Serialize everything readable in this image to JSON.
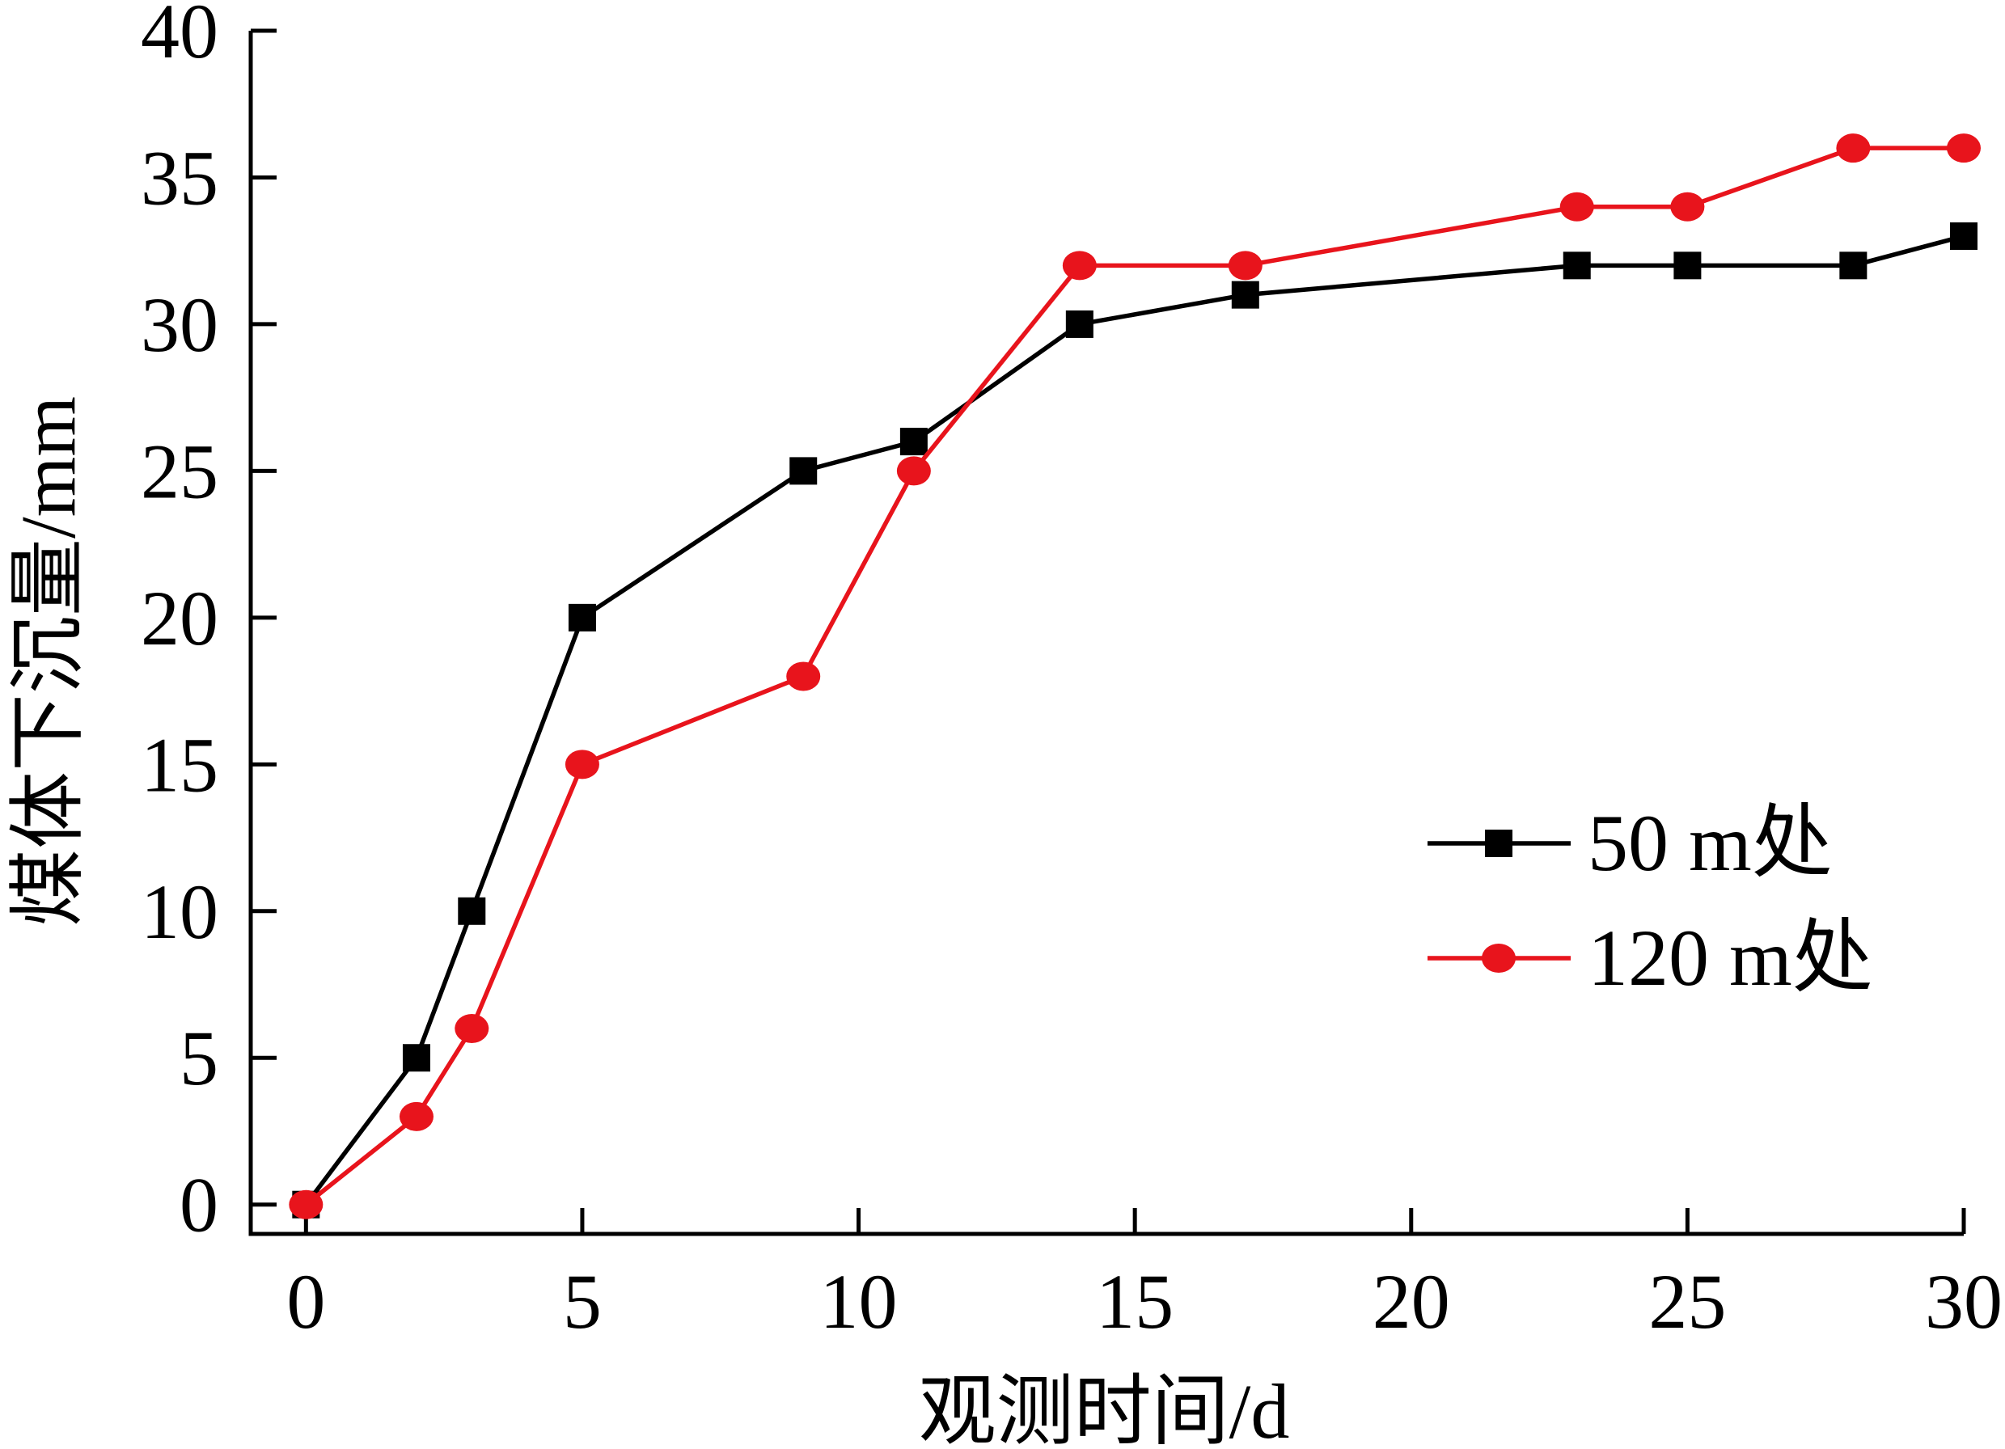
{
  "chart_data": {
    "type": "line",
    "xlabel": "观测时间/d",
    "ylabel": "煤体下沉量/mm",
    "xlim": [
      -1,
      30
    ],
    "ylim": [
      -1,
      40
    ],
    "x_ticks": [
      0,
      5,
      10,
      15,
      20,
      25,
      30
    ],
    "x_tick_labels": [
      "0",
      "5",
      "10",
      "15",
      "20",
      "25",
      "30"
    ],
    "y_ticks": [
      0,
      5,
      10,
      15,
      20,
      25,
      30,
      35,
      40
    ],
    "y_tick_labels": [
      "0",
      "5",
      "10",
      "15",
      "20",
      "25",
      "30",
      "35",
      "40"
    ],
    "grid": false,
    "legend_position": "right",
    "series": [
      {
        "name": "50 m处",
        "color": "#000000",
        "marker": "square",
        "x": [
          0,
          2,
          3,
          5,
          9,
          11,
          14,
          17,
          23,
          25,
          28,
          30
        ],
        "y": [
          0,
          5,
          10,
          20,
          25,
          26,
          30,
          31,
          32,
          32,
          32,
          33
        ]
      },
      {
        "name": "120 m处",
        "color": "#e8141c",
        "marker": "circle",
        "x": [
          0,
          2,
          3,
          5,
          9,
          11,
          14,
          17,
          23,
          25,
          28,
          30
        ],
        "y": [
          0,
          3,
          6,
          15,
          18,
          25,
          32,
          32,
          34,
          34,
          36,
          36
        ]
      }
    ]
  }
}
